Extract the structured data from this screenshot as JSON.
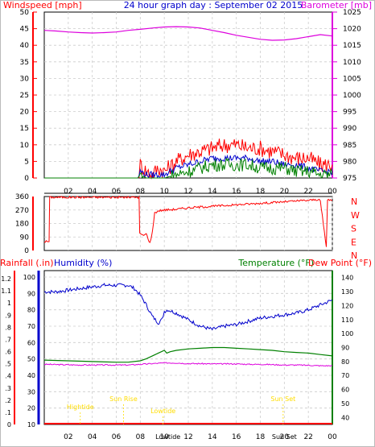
{
  "title": "24 hour graph day : September 02 2015",
  "colors": {
    "wind": "#ff0000",
    "gust": "#0000cc",
    "green": "#008000",
    "baro": "#dd00dd",
    "blue_axis": "#0000cc",
    "time": "#ffdd00"
  },
  "chart_data": [
    {
      "type": "line",
      "name": "wind_baro",
      "ylabel_left": "Windspeed [mph]",
      "ylabel_right": "Barometer [mb]",
      "ylim_left": [
        0,
        50
      ],
      "ylim_right": [
        975,
        1025
      ],
      "left_ticks": [
        0,
        5,
        10,
        15,
        20,
        25,
        30,
        35,
        40,
        45,
        50
      ],
      "right_ticks": [
        975,
        980,
        985,
        990,
        995,
        1000,
        1005,
        1010,
        1015,
        1020,
        1025
      ],
      "x_ticks": [
        "02",
        "04",
        "06",
        "08",
        "10",
        "12",
        "14",
        "16",
        "18",
        "20",
        "22",
        "00"
      ],
      "series": [
        {
          "name": "Barometer",
          "axis": "right",
          "x": [
            0,
            1,
            2,
            3,
            4,
            5,
            6,
            7,
            8,
            9,
            10,
            11,
            12,
            13,
            14,
            15,
            16,
            17,
            18,
            19,
            20,
            21,
            22,
            23,
            24
          ],
          "values": [
            1019.5,
            1019.3,
            1019.0,
            1018.8,
            1018.7,
            1018.8,
            1019.0,
            1019.5,
            1019.8,
            1020.2,
            1020.5,
            1020.6,
            1020.5,
            1020.2,
            1019.5,
            1018.8,
            1018.0,
            1017.4,
            1016.8,
            1016.5,
            1016.6,
            1017.0,
            1017.6,
            1018.2,
            1017.8
          ]
        },
        {
          "name": "Wind gust",
          "axis": "left",
          "x": [
            0,
            7.8,
            8.0,
            8.5,
            9.0,
            9.5,
            10.0,
            11.0,
            12.0,
            13.0,
            14.0,
            15.0,
            16.0,
            17.0,
            18.0,
            19.0,
            20.0,
            21.0,
            22.0,
            23.0,
            24.0
          ],
          "values": [
            0,
            0,
            4,
            2,
            1,
            3,
            2,
            5,
            7,
            8,
            9,
            10,
            10,
            9,
            9,
            8,
            7,
            6,
            6,
            4,
            4
          ]
        },
        {
          "name": "Wind average",
          "axis": "left",
          "x": [
            0,
            7.8,
            8.0,
            8.5,
            9.0,
            9.5,
            10.0,
            11.0,
            12.0,
            13.0,
            14.0,
            15.0,
            16.0,
            17.0,
            18.0,
            19.0,
            20.0,
            21.0,
            22.0,
            23.0,
            24.0
          ],
          "values": [
            0,
            0,
            2,
            1,
            1,
            1,
            1,
            3,
            4,
            5,
            6,
            6,
            6,
            6,
            5,
            5,
            4,
            4,
            3,
            2,
            2
          ]
        },
        {
          "name": "Wind direction speed",
          "axis": "left",
          "x": [
            0,
            7.8,
            8.0,
            8.5,
            9.0,
            9.5,
            10.0,
            11.0,
            12.0,
            13.0,
            14.0,
            15.0,
            16.0,
            17.0,
            18.0,
            19.0,
            20.0,
            21.0,
            22.0,
            23.0,
            24.0
          ],
          "values": [
            0,
            0,
            1,
            0,
            0,
            0,
            0,
            1,
            2,
            3,
            4,
            4,
            4,
            4,
            3,
            3,
            3,
            2,
            2,
            1,
            1
          ]
        }
      ]
    },
    {
      "type": "line",
      "name": "wind_direction",
      "ylim": [
        0,
        360
      ],
      "left_ticks": [
        0,
        90,
        180,
        270,
        360
      ],
      "right_labels": [
        "N",
        "W",
        "S",
        "E",
        "N"
      ],
      "x_ticks": [
        "02",
        "04",
        "06",
        "08",
        "10",
        "12",
        "14",
        "16",
        "18",
        "20",
        "22",
        "00"
      ],
      "series": [
        {
          "name": "Wind direction",
          "x": [
            0,
            0.4,
            0.45,
            7.9,
            7.95,
            8.2,
            8.5,
            8.8,
            9.0,
            9.2,
            9.5,
            10.0,
            11.0,
            12.0,
            13.0,
            14.0,
            15.0,
            16.0,
            17.0,
            18.0,
            19.0,
            20.0,
            21.0,
            22.0,
            22.8,
            23.0,
            23.5,
            23.6,
            24.0
          ],
          "values": [
            60,
            60,
            355,
            355,
            115,
            100,
            110,
            50,
            120,
            250,
            265,
            270,
            275,
            285,
            290,
            295,
            300,
            305,
            310,
            315,
            320,
            325,
            330,
            335,
            340,
            330,
            20,
            340,
            335
          ]
        }
      ]
    },
    {
      "type": "line",
      "name": "temp_humidity",
      "ylabel_rain": "Rainfall (.in)",
      "ylabel_humidity": "Humidity (%)",
      "ylabel_temp": "Temperature (°F)",
      "ylabel_dew": "Dew Point (°F)",
      "rain_ticks": [
        "0",
        ".1",
        ".2",
        ".3",
        ".4",
        ".5",
        ".6",
        ".7",
        ".8",
        ".9",
        "1",
        "1.1",
        "1.2"
      ],
      "humidity_ticks": [
        10,
        20,
        30,
        40,
        50,
        60,
        70,
        80,
        90,
        100
      ],
      "temp_ticks": [
        40,
        50,
        60,
        70,
        80,
        90,
        100,
        110,
        120,
        130,
        140
      ],
      "humidity_lim": [
        10,
        100
      ],
      "temp_lim": [
        35,
        145
      ],
      "x_ticks": [
        "02",
        "04",
        "06",
        "08",
        "10",
        "12",
        "14",
        "16",
        "18",
        "20",
        "22",
        "00"
      ],
      "series": [
        {
          "name": "Humidity",
          "axis": "humidity",
          "x": [
            0,
            1,
            2,
            3,
            4,
            5,
            6,
            7,
            7.5,
            8.0,
            8.5,
            9.0,
            9.5,
            9.8,
            10.0,
            10.3,
            11.0,
            12.0,
            13.0,
            14.0,
            15.0,
            16.0,
            17.0,
            18.0,
            19.0,
            20.0,
            21.0,
            22.0,
            23.0,
            24.0
          ],
          "values": [
            91,
            91,
            92,
            93,
            94,
            95,
            95,
            95,
            93,
            89,
            83,
            76,
            72,
            74,
            79,
            80,
            78,
            74,
            70,
            68,
            70,
            71,
            73,
            75,
            76,
            77,
            78,
            80,
            83,
            86
          ]
        },
        {
          "name": "Temperature",
          "axis": "temp",
          "x": [
            0,
            2,
            4,
            6,
            7,
            8,
            8.5,
            9,
            9.5,
            10,
            10.2,
            10.5,
            11,
            12,
            13,
            14,
            15,
            16,
            17,
            18,
            19,
            20,
            21,
            22,
            23,
            24
          ],
          "values": [
            81,
            80.5,
            80,
            79.5,
            79.5,
            80.5,
            82,
            84,
            86,
            88,
            86,
            87,
            88,
            89,
            89.5,
            90,
            90,
            89.5,
            89,
            88.5,
            88,
            87,
            86.5,
            86,
            85,
            84
          ]
        },
        {
          "name": "Dew Point",
          "axis": "temp",
          "x": [
            0,
            3,
            6,
            7,
            8,
            9,
            10,
            11,
            12,
            13,
            14,
            15,
            16,
            17,
            18,
            19,
            20,
            21,
            22,
            23,
            24
          ],
          "values": [
            78,
            77.5,
            77.5,
            77.5,
            78,
            78.5,
            79,
            79,
            78.5,
            78.5,
            78.3,
            78.3,
            78.3,
            78,
            78,
            77.8,
            77.5,
            77.5,
            77.3,
            77,
            77
          ]
        },
        {
          "name": "Rainfall",
          "axis": "rain",
          "x": [
            0,
            24
          ],
          "values": [
            0,
            0
          ]
        }
      ],
      "annotations": [
        {
          "text": "Hightide",
          "x": 3.0,
          "row": 1
        },
        {
          "text": "Sun Rise",
          "x": 6.6,
          "row": 0
        },
        {
          "text": "Lowtide",
          "x": 9.9,
          "row": 2
        },
        {
          "text": "Sun Set",
          "x": 19.9,
          "row": 0
        }
      ],
      "x_extra_labels": [
        {
          "text": "Lowtide",
          "x": 10.3
        },
        {
          "text": "Sun Set",
          "x": 20.0
        }
      ]
    }
  ]
}
